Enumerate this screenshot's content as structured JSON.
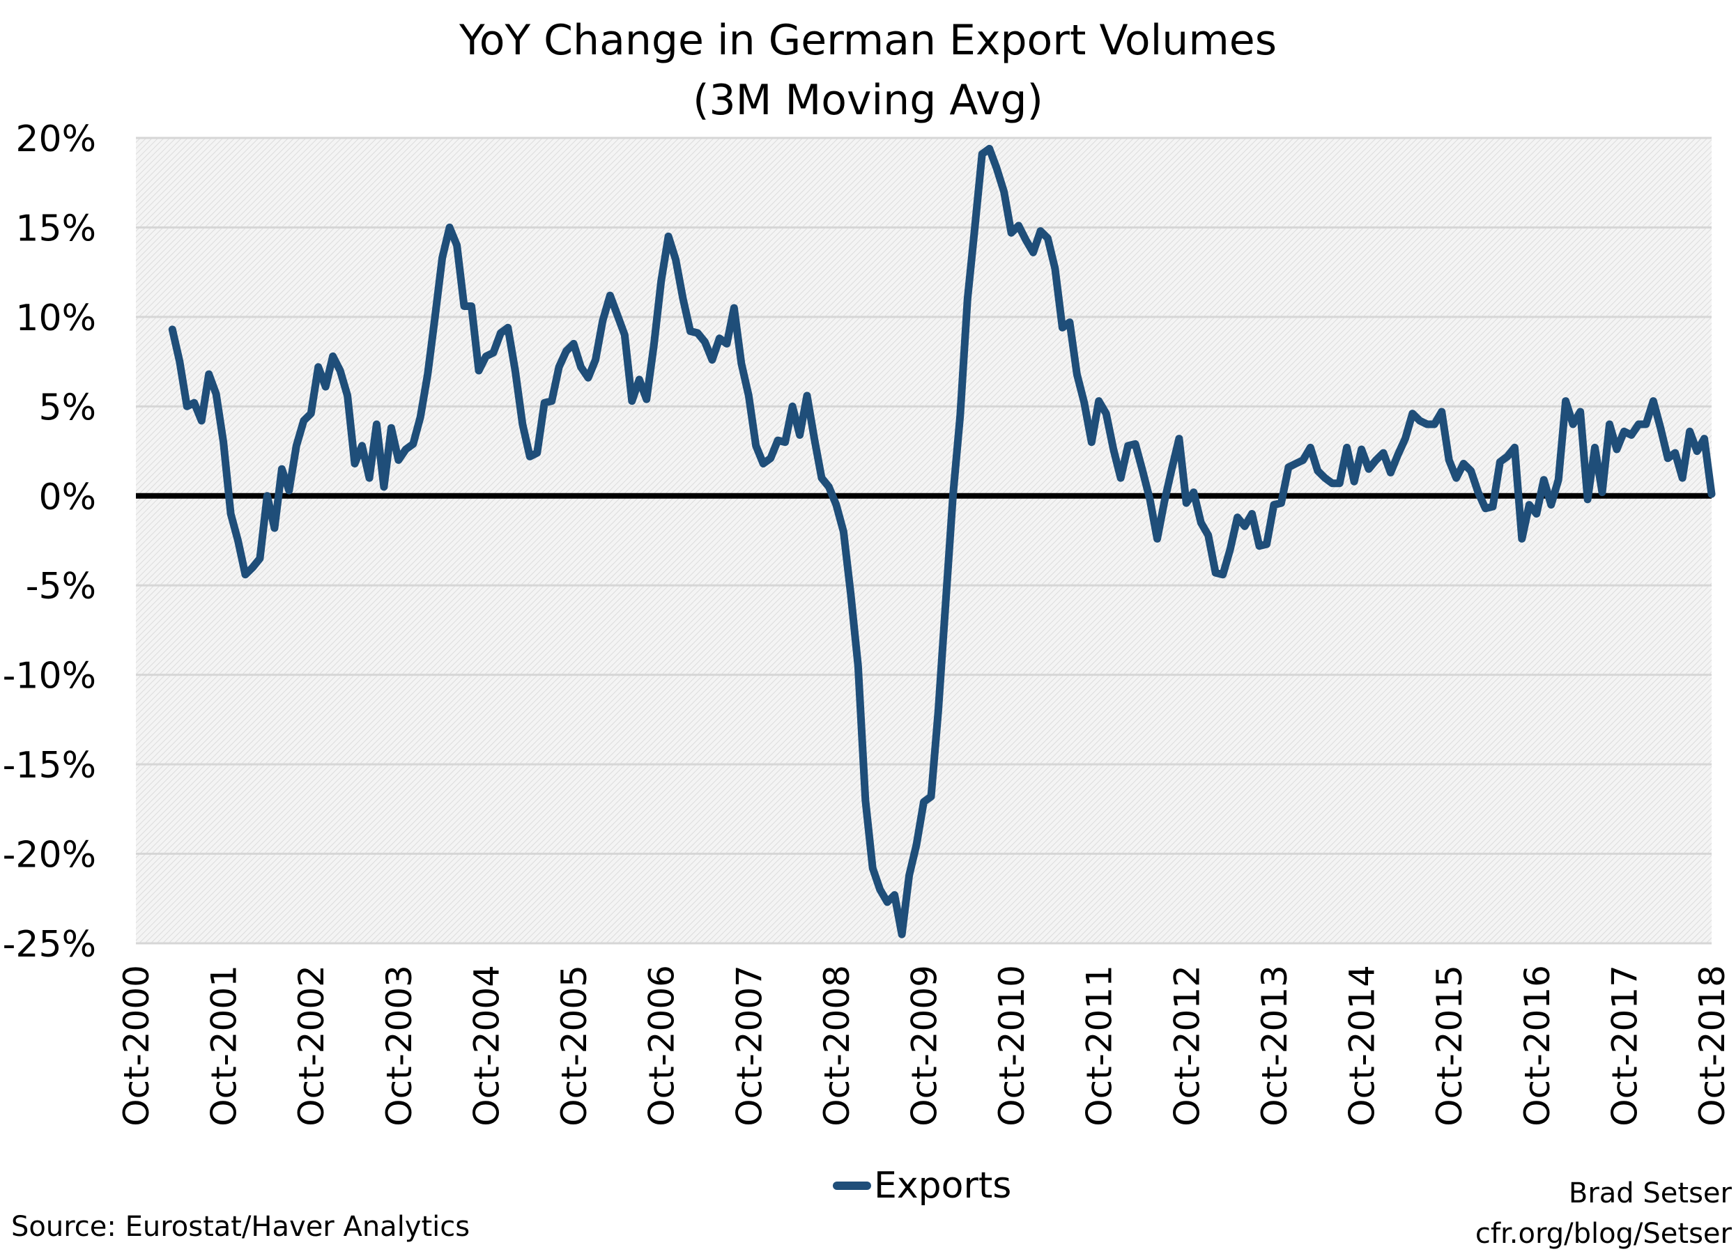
{
  "chart_data": {
    "type": "line",
    "title": "YoY Change in German Export Volumes",
    "subtitle": "(3M Moving Avg)",
    "xlabel": "",
    "ylabel": "",
    "ylim": [
      -25,
      20
    ],
    "yticks": [
      20,
      15,
      10,
      5,
      0,
      -5,
      -10,
      -15,
      -20,
      -25
    ],
    "ytick_labels": [
      "20%",
      "15%",
      "10%",
      "5%",
      "0%",
      "-5%",
      "-10%",
      "-15%",
      "-20%",
      "-25%"
    ],
    "xticks": [
      "Oct-2000",
      "Oct-2001",
      "Oct-2002",
      "Oct-2003",
      "Oct-2004",
      "Oct-2005",
      "Oct-2006",
      "Oct-2007",
      "Oct-2008",
      "Oct-2009",
      "Oct-2010",
      "Oct-2011",
      "Oct-2012",
      "Oct-2013",
      "Oct-2014",
      "Oct-2015",
      "Oct-2016",
      "Oct-2017",
      "Oct-2018"
    ],
    "xlim": [
      "2000-10",
      "2018-10"
    ],
    "grid": true,
    "legend": "bottom",
    "series": [
      {
        "name": "Exports",
        "color": "#1f4e79",
        "x": [
          "2001-03",
          "2001-04",
          "2001-05",
          "2001-06",
          "2001-07",
          "2001-08",
          "2001-09",
          "2001-10",
          "2001-11",
          "2001-12",
          "2002-01",
          "2002-02",
          "2002-03",
          "2002-04",
          "2002-05",
          "2002-06",
          "2002-07",
          "2002-08",
          "2002-09",
          "2002-10",
          "2002-11",
          "2002-12",
          "2003-01",
          "2003-02",
          "2003-03",
          "2003-04",
          "2003-05",
          "2003-06",
          "2003-07",
          "2003-08",
          "2003-09",
          "2003-10",
          "2003-11",
          "2003-12",
          "2004-01",
          "2004-02",
          "2004-03",
          "2004-04",
          "2004-05",
          "2004-06",
          "2004-07",
          "2004-08",
          "2004-09",
          "2004-10",
          "2004-11",
          "2004-12",
          "2005-01",
          "2005-02",
          "2005-03",
          "2005-04",
          "2005-05",
          "2005-06",
          "2005-07",
          "2005-08",
          "2005-09",
          "2005-10",
          "2005-11",
          "2005-12",
          "2006-01",
          "2006-02",
          "2006-03",
          "2006-04",
          "2006-05",
          "2006-06",
          "2006-07",
          "2006-08",
          "2006-09",
          "2006-10",
          "2006-11",
          "2006-12",
          "2007-01",
          "2007-02",
          "2007-03",
          "2007-04",
          "2007-05",
          "2007-06",
          "2007-07",
          "2007-08",
          "2007-09",
          "2007-10",
          "2007-11",
          "2007-12",
          "2008-01",
          "2008-02",
          "2008-03",
          "2008-04",
          "2008-05",
          "2008-06",
          "2008-07",
          "2008-08",
          "2008-09",
          "2008-10",
          "2008-11",
          "2008-12",
          "2009-01",
          "2009-02",
          "2009-03",
          "2009-04",
          "2009-05",
          "2009-06",
          "2009-07",
          "2009-08",
          "2009-09",
          "2009-10",
          "2009-11",
          "2009-12",
          "2010-01",
          "2010-02",
          "2010-03",
          "2010-04",
          "2010-05",
          "2010-06",
          "2010-07",
          "2010-08",
          "2010-09",
          "2010-10",
          "2010-11",
          "2010-12",
          "2011-01",
          "2011-02",
          "2011-03",
          "2011-04",
          "2011-05",
          "2011-06",
          "2011-07",
          "2011-08",
          "2011-09",
          "2011-10",
          "2011-11",
          "2011-12",
          "2012-01",
          "2012-02",
          "2012-03",
          "2012-04",
          "2012-05",
          "2012-06",
          "2012-07",
          "2012-08",
          "2012-09",
          "2012-10",
          "2012-11",
          "2012-12",
          "2013-01",
          "2013-02",
          "2013-03",
          "2013-04",
          "2013-05",
          "2013-06",
          "2013-07",
          "2013-08",
          "2013-09",
          "2013-10",
          "2013-11",
          "2013-12",
          "2014-01",
          "2014-02",
          "2014-03",
          "2014-04",
          "2014-05",
          "2014-06",
          "2014-07",
          "2014-08",
          "2014-09",
          "2014-10",
          "2014-11",
          "2014-12",
          "2015-01",
          "2015-02",
          "2015-03",
          "2015-04",
          "2015-05",
          "2015-06",
          "2015-07",
          "2015-08",
          "2015-09",
          "2015-10",
          "2015-11",
          "2015-12",
          "2016-01",
          "2016-02",
          "2016-03",
          "2016-04",
          "2016-05",
          "2016-06",
          "2016-07",
          "2016-08",
          "2016-09",
          "2016-10",
          "2016-11",
          "2016-12",
          "2017-01",
          "2017-02",
          "2017-03",
          "2017-04",
          "2017-05",
          "2017-06",
          "2017-07",
          "2017-08",
          "2017-09",
          "2017-10",
          "2017-11",
          "2017-12",
          "2018-01",
          "2018-02",
          "2018-03",
          "2018-04",
          "2018-05",
          "2018-06",
          "2018-07",
          "2018-08",
          "2018-09",
          "2018-10"
        ],
        "values": [
          9.3,
          7.5,
          5.0,
          5.2,
          4.2,
          6.8,
          5.7,
          3.0,
          -1.0,
          -2.5,
          -4.4,
          -4.0,
          -3.5,
          0.0,
          -1.8,
          1.5,
          0.3,
          2.8,
          4.2,
          4.6,
          7.2,
          6.1,
          7.8,
          7.0,
          5.6,
          1.8,
          2.8,
          1.0,
          4.0,
          0.5,
          3.8,
          2.0,
          2.6,
          2.9,
          4.4,
          6.8,
          10.0,
          13.3,
          15.0,
          14.0,
          10.6,
          10.6,
          7.0,
          7.8,
          8.0,
          9.1,
          9.4,
          7.0,
          4.0,
          2.2,
          2.4,
          5.2,
          5.3,
          7.2,
          8.1,
          8.5,
          7.2,
          6.6,
          7.6,
          9.8,
          11.2,
          10.1,
          9.0,
          5.3,
          6.5,
          5.4,
          8.4,
          12.0,
          14.5,
          13.2,
          11.0,
          9.2,
          9.1,
          8.6,
          7.6,
          8.8,
          8.5,
          10.5,
          7.4,
          5.6,
          2.8,
          1.8,
          2.1,
          3.1,
          3.0,
          5.0,
          3.4,
          5.6,
          3.2,
          1.0,
          0.5,
          -0.5,
          -2.0,
          -5.5,
          -9.5,
          -17.0,
          -20.8,
          -22.0,
          -22.7,
          -22.3,
          -24.5,
          -21.2,
          -19.5,
          -17.1,
          -16.8,
          -12.0,
          -6.0,
          0.0,
          4.5,
          11.0,
          15.0,
          19.1,
          19.4,
          18.3,
          17.0,
          14.7,
          15.1,
          14.3,
          13.6,
          14.8,
          14.4,
          12.7,
          9.4,
          9.7,
          6.8,
          5.2,
          3.0,
          5.3,
          4.6,
          2.6,
          1.0,
          2.8,
          2.9,
          1.4,
          -0.2,
          -2.4,
          -0.3,
          1.5,
          3.2,
          -0.4,
          0.2,
          -1.5,
          -2.2,
          -4.3,
          -4.4,
          -3.0,
          -1.2,
          -1.7,
          -1.0,
          -2.8,
          -2.7,
          -0.5,
          -0.4,
          1.6,
          1.8,
          2.0,
          2.7,
          1.4,
          1.0,
          0.7,
          0.7,
          2.7,
          0.8,
          2.6,
          1.5,
          2.0,
          2.4,
          1.3,
          2.3,
          3.2,
          4.6,
          4.2,
          4.0,
          4.0,
          4.7,
          2.0,
          1.0,
          1.8,
          1.4,
          0.2,
          -0.7,
          -0.6,
          1.9,
          2.2,
          2.7,
          -2.4,
          -0.5,
          -1.0,
          0.9,
          -0.5,
          0.9,
          5.3,
          4.0,
          4.7,
          -0.2,
          2.7,
          0.2,
          4.0,
          2.6,
          3.6,
          3.4,
          4.0,
          4.0,
          5.3,
          3.8,
          2.1,
          2.4,
          1.0,
          3.6,
          2.5,
          3.2,
          0.1
        ]
      }
    ],
    "zero_line": true
  },
  "footer": {
    "source": "Source: Eurostat/Haver Analytics",
    "author": "Brad Setser",
    "site": "cfr.org/blog/Setser"
  }
}
